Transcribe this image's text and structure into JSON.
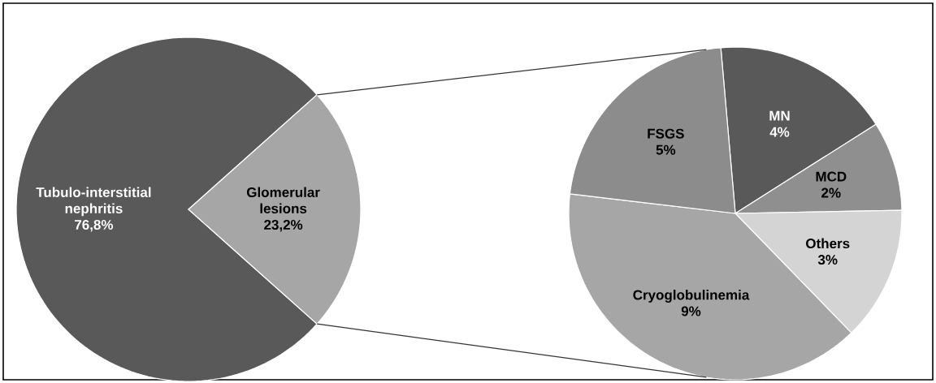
{
  "chart_data": [
    {
      "type": "pie",
      "categories": [
        "Tubulo-interstitial nephritis",
        "Glomerular lesions"
      ],
      "values": [
        76.8,
        23.2
      ],
      "value_labels": [
        "76,8%",
        "23,2%"
      ],
      "colors": [
        "#595959",
        "#a6a6a6"
      ]
    },
    {
      "type": "pie",
      "categories": [
        "MN",
        "MCD",
        "Others",
        "Cryoglobulinemia",
        "FSGS"
      ],
      "values": [
        4,
        2,
        3,
        9,
        5
      ],
      "value_labels": [
        "4%",
        "2%",
        "3%",
        "9%",
        "5%"
      ],
      "colors": [
        "#595959",
        "#8f8f8f",
        "#d4d4d4",
        "#a6a6a6",
        "#8c8c8c"
      ]
    }
  ]
}
